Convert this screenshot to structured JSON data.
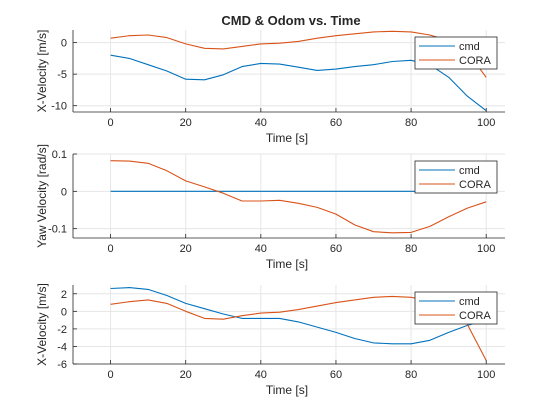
{
  "chart_data": {
    "title": "CMD & Odom vs. Time",
    "colors": {
      "cmd": "#0072BD",
      "CORA": "#D95319",
      "grid": "#e6e6e6",
      "axis": "#262626"
    },
    "subplots": [
      {
        "type": "line",
        "xlabel": "Time [s]",
        "ylabel": "X-Velocity [m/s]",
        "xlim": [
          -10,
          105
        ],
        "ylim": [
          -11,
          2
        ],
        "xticks": [
          0,
          20,
          40,
          60,
          80,
          100
        ],
        "xtick_labels": [
          "0",
          "20",
          "40",
          "60",
          "80",
          "100"
        ],
        "yticks": [
          0,
          -5,
          -10
        ],
        "ytick_labels": [
          "0",
          "-5",
          "-10"
        ],
        "grid": true,
        "legend": "top-right",
        "series": [
          {
            "name": "cmd",
            "x": [
              0,
              5,
              10,
              15,
              20,
              25,
              30,
              35,
              40,
              45,
              50,
              55,
              60,
              65,
              70,
              75,
              80,
              85,
              90,
              95,
              100
            ],
            "y": [
              -2.0,
              -2.5,
              -3.5,
              -4.5,
              -5.8,
              -5.9,
              -5.1,
              -3.8,
              -3.3,
              -3.4,
              -3.9,
              -4.4,
              -4.2,
              -3.8,
              -3.5,
              -3.0,
              -2.8,
              -3.5,
              -5.5,
              -8.5,
              -10.8
            ]
          },
          {
            "name": "CORA",
            "x": [
              0,
              5,
              10,
              15,
              20,
              25,
              30,
              35,
              40,
              45,
              50,
              55,
              60,
              65,
              70,
              75,
              80,
              85,
              90,
              95,
              100
            ],
            "y": [
              0.7,
              1.1,
              1.2,
              0.8,
              -0.2,
              -0.9,
              -1.0,
              -0.6,
              -0.2,
              -0.1,
              0.2,
              0.7,
              1.1,
              1.4,
              1.7,
              1.8,
              1.7,
              1.2,
              0.3,
              -1.5,
              -5.5
            ]
          }
        ]
      },
      {
        "type": "line",
        "xlabel": "Time [s]",
        "ylabel": "Yaw Velocity [rad/s]",
        "xlim": [
          -10,
          105
        ],
        "ylim": [
          -0.125,
          0.1
        ],
        "xticks": [
          0,
          20,
          40,
          60,
          80,
          100
        ],
        "xtick_labels": [
          "0",
          "20",
          "40",
          "60",
          "80",
          "100"
        ],
        "yticks": [
          0.1,
          0,
          -0.1
        ],
        "ytick_labels": [
          "0.1",
          "0",
          "-0.1"
        ],
        "grid": true,
        "legend": "top-right",
        "series": [
          {
            "name": "cmd",
            "x": [
              0,
              100
            ],
            "y": [
              0,
              0
            ]
          },
          {
            "name": "CORA",
            "x": [
              0,
              5,
              10,
              15,
              20,
              25,
              30,
              35,
              40,
              45,
              50,
              55,
              60,
              65,
              70,
              75,
              80,
              85,
              90,
              95,
              100
            ],
            "y": [
              0.082,
              0.081,
              0.075,
              0.055,
              0.028,
              0.012,
              -0.005,
              -0.026,
              -0.026,
              -0.024,
              -0.032,
              -0.043,
              -0.061,
              -0.09,
              -0.108,
              -0.111,
              -0.11,
              -0.094,
              -0.068,
              -0.045,
              -0.028
            ]
          }
        ]
      },
      {
        "type": "line",
        "xlabel": "Time [s]",
        "ylabel": "X-Velocity [m/s]",
        "xlim": [
          -10,
          105
        ],
        "ylim": [
          -6,
          3
        ],
        "xticks": [
          0,
          20,
          40,
          60,
          80,
          100
        ],
        "xtick_labels": [
          "0",
          "20",
          "40",
          "60",
          "80",
          "100"
        ],
        "yticks": [
          2,
          0,
          -2,
          -4,
          -6
        ],
        "ytick_labels": [
          "2",
          "0",
          "-2",
          "-4",
          "-6"
        ],
        "grid": true,
        "legend": "top-right",
        "series": [
          {
            "name": "cmd",
            "x": [
              0,
              5,
              10,
              15,
              20,
              25,
              30,
              35,
              40,
              45,
              50,
              55,
              60,
              65,
              70,
              75,
              80,
              85,
              90,
              95,
              100
            ],
            "y": [
              2.6,
              2.7,
              2.5,
              1.8,
              0.9,
              0.3,
              -0.3,
              -0.8,
              -0.8,
              -0.8,
              -1.2,
              -1.8,
              -2.4,
              -3.1,
              -3.6,
              -3.7,
              -3.7,
              -3.3,
              -2.4,
              -1.6,
              -1.0
            ]
          },
          {
            "name": "CORA",
            "x": [
              0,
              5,
              10,
              15,
              20,
              25,
              30,
              35,
              40,
              45,
              50,
              55,
              60,
              65,
              70,
              75,
              80,
              85,
              90,
              95,
              100
            ],
            "y": [
              0.8,
              1.1,
              1.3,
              0.9,
              0.0,
              -0.8,
              -0.9,
              -0.5,
              -0.2,
              -0.1,
              0.2,
              0.6,
              1.0,
              1.3,
              1.6,
              1.7,
              1.6,
              1.2,
              0.5,
              -1.5,
              -5.6
            ]
          }
        ]
      }
    ]
  }
}
